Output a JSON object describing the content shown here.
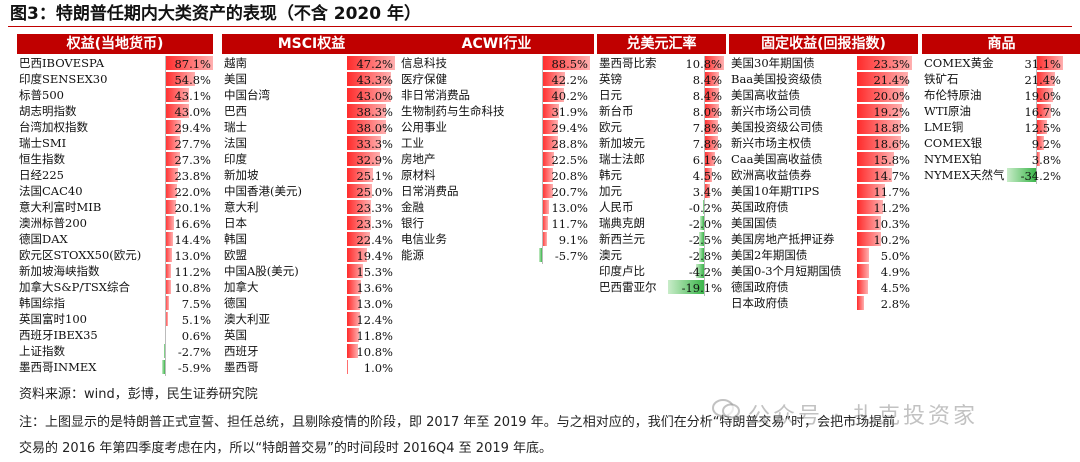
{
  "figure_title": "图3：特朗普任期内大类资产的表现（不含 2020 年）",
  "columns": [
    {
      "header": "权益(当地货币)",
      "rows": [
        {
          "name": "巴西IBOVESPA",
          "value": "87.1%",
          "num": 87.1
        },
        {
          "name": "印度SENSEX30",
          "value": "54.8%",
          "num": 54.8
        },
        {
          "name": "标普500",
          "value": "43.1%",
          "num": 43.1
        },
        {
          "name": "胡志明指数",
          "value": "43.0%",
          "num": 43.0
        },
        {
          "name": "台湾加权指数",
          "value": "29.4%",
          "num": 29.4
        },
        {
          "name": "瑞士SMI",
          "value": "27.7%",
          "num": 27.7
        },
        {
          "name": "恒生指数",
          "value": "27.3%",
          "num": 27.3
        },
        {
          "name": "日经225",
          "value": "23.8%",
          "num": 23.8
        },
        {
          "name": "法国CAC40",
          "value": "22.0%",
          "num": 22.0
        },
        {
          "name": "意大利富时MIB",
          "value": "20.1%",
          "num": 20.1
        },
        {
          "name": "澳洲标普200",
          "value": "16.6%",
          "num": 16.6
        },
        {
          "name": "德国DAX",
          "value": "14.4%",
          "num": 14.4
        },
        {
          "name": "欧元区STOXX50(欧元)",
          "value": "13.0%",
          "num": 13.0
        },
        {
          "name": "新加坡海峡指数",
          "value": "11.2%",
          "num": 11.2
        },
        {
          "name": "加拿大S&P/TSX综合",
          "value": "10.8%",
          "num": 10.8
        },
        {
          "name": "韩国综指",
          "value": "7.5%",
          "num": 7.5
        },
        {
          "name": "英国富时100",
          "value": "5.1%",
          "num": 5.1
        },
        {
          "name": "西班牙IBEX35",
          "value": "0.6%",
          "num": 0.6
        },
        {
          "name": "上证指数",
          "value": "-2.7%",
          "num": -2.7
        },
        {
          "name": "墨西哥INMEX",
          "value": "-5.9%",
          "num": -5.9
        }
      ]
    },
    {
      "header": "MSCI权益",
      "rows": [
        {
          "name": "越南",
          "value": "47.2%",
          "num": 47.2
        },
        {
          "name": "美国",
          "value": "43.3%",
          "num": 43.3
        },
        {
          "name": "中国台湾",
          "value": "43.0%",
          "num": 43.0
        },
        {
          "name": "巴西",
          "value": "38.3%",
          "num": 38.3
        },
        {
          "name": "瑞士",
          "value": "38.0%",
          "num": 38.0
        },
        {
          "name": "法国",
          "value": "33.3%",
          "num": 33.3
        },
        {
          "name": "印度",
          "value": "32.9%",
          "num": 32.9
        },
        {
          "name": "新加坡",
          "value": "25.1%",
          "num": 25.1
        },
        {
          "name": "中国香港(美元)",
          "value": "25.0%",
          "num": 25.0
        },
        {
          "name": "意大利",
          "value": "23.3%",
          "num": 23.3
        },
        {
          "name": "日本",
          "value": "23.3%",
          "num": 23.3
        },
        {
          "name": "韩国",
          "value": "22.4%",
          "num": 22.4
        },
        {
          "name": "欧盟",
          "value": "19.4%",
          "num": 19.4
        },
        {
          "name": "中国A股(美元)",
          "value": "15.3%",
          "num": 15.3
        },
        {
          "name": "加拿大",
          "value": "13.6%",
          "num": 13.6
        },
        {
          "name": "德国",
          "value": "13.0%",
          "num": 13.0
        },
        {
          "name": "澳大利亚",
          "value": "12.4%",
          "num": 12.4
        },
        {
          "name": "英国",
          "value": "11.8%",
          "num": 11.8
        },
        {
          "name": "西班牙",
          "value": "10.8%",
          "num": 10.8
        },
        {
          "name": "墨西哥",
          "value": "1.0%",
          "num": 1.0
        }
      ]
    },
    {
      "header": "ACWI行业",
      "rows": [
        {
          "name": "信息科技",
          "value": "88.5%",
          "num": 88.5
        },
        {
          "name": "医疗保健",
          "value": "42.2%",
          "num": 42.2
        },
        {
          "name": "非日常消费品",
          "value": "40.2%",
          "num": 40.2
        },
        {
          "name": "生物制药与生命科技",
          "value": "31.9%",
          "num": 31.9
        },
        {
          "name": "公用事业",
          "value": "29.4%",
          "num": 29.4
        },
        {
          "name": "工业",
          "value": "28.8%",
          "num": 28.8
        },
        {
          "name": "房地产",
          "value": "22.5%",
          "num": 22.5
        },
        {
          "name": "原材料",
          "value": "20.8%",
          "num": 20.8
        },
        {
          "name": "日常消费品",
          "value": "20.7%",
          "num": 20.7
        },
        {
          "name": "金融",
          "value": "13.0%",
          "num": 13.0
        },
        {
          "name": "银行",
          "value": "11.7%",
          "num": 11.7
        },
        {
          "name": "电信业务",
          "value": "9.1%",
          "num": 9.1
        },
        {
          "name": "能源",
          "value": "-5.7%",
          "num": -5.7
        }
      ]
    },
    {
      "header": "兑美元汇率",
      "rows": [
        {
          "name": "墨西哥比索",
          "value": "10.8%",
          "num": 10.8
        },
        {
          "name": "英镑",
          "value": "8.4%",
          "num": 8.4
        },
        {
          "name": "日元",
          "value": "8.4%",
          "num": 8.4
        },
        {
          "name": "新台币",
          "value": "8.0%",
          "num": 8.0
        },
        {
          "name": "欧元",
          "value": "7.8%",
          "num": 7.8
        },
        {
          "name": "新加坡元",
          "value": "7.8%",
          "num": 7.8
        },
        {
          "name": "瑞士法郎",
          "value": "6.1%",
          "num": 6.1
        },
        {
          "name": "韩元",
          "value": "4.5%",
          "num": 4.5
        },
        {
          "name": "加元",
          "value": "3.4%",
          "num": 3.4
        },
        {
          "name": "人民币",
          "value": "-0.2%",
          "num": -0.2
        },
        {
          "name": "瑞典克朗",
          "value": "-2.0%",
          "num": -2.0
        },
        {
          "name": "新西兰元",
          "value": "-2.5%",
          "num": -2.5
        },
        {
          "name": "澳元",
          "value": "-2.8%",
          "num": -2.8
        },
        {
          "name": "印度卢比",
          "value": "-4.2%",
          "num": -4.2
        },
        {
          "name": "巴西雷亚尔",
          "value": "-19.1%",
          "num": -19.1
        }
      ]
    },
    {
      "header": "固定收益(回报指数)",
      "rows": [
        {
          "name": "美国30年期国债",
          "value": "23.3%",
          "num": 23.3
        },
        {
          "name": "Baa美国投资级债",
          "value": "21.4%",
          "num": 21.4
        },
        {
          "name": "美国高收益债",
          "value": "20.0%",
          "num": 20.0
        },
        {
          "name": "新兴市场公司债",
          "value": "19.2%",
          "num": 19.2
        },
        {
          "name": "美国投资级公司债",
          "value": "18.8%",
          "num": 18.8
        },
        {
          "name": "新兴市场主权债",
          "value": "18.6%",
          "num": 18.6
        },
        {
          "name": "Caa美国高收益债",
          "value": "15.8%",
          "num": 15.8
        },
        {
          "name": "欧洲高收益债券",
          "value": "14.7%",
          "num": 14.7
        },
        {
          "name": "美国10年期TIPS",
          "value": "11.7%",
          "num": 11.7
        },
        {
          "name": "英国政府债",
          "value": "11.2%",
          "num": 11.2
        },
        {
          "name": "美国国债",
          "value": "10.3%",
          "num": 10.3
        },
        {
          "name": "美国房地产抵押证券",
          "value": "10.2%",
          "num": 10.2
        },
        {
          "name": "美国2年期国债",
          "value": "5.0%",
          "num": 5.0
        },
        {
          "name": "美国0-3个月短期国债",
          "value": "4.9%",
          "num": 4.9
        },
        {
          "name": "德国政府债",
          "value": "4.5%",
          "num": 4.5
        },
        {
          "name": "日本政府债",
          "value": "2.8%",
          "num": 2.8
        }
      ]
    },
    {
      "header": "商品",
      "rows": [
        {
          "name": "COMEX黄金",
          "value": "31.1%",
          "num": 31.1
        },
        {
          "name": "铁矿石",
          "value": "21.4%",
          "num": 21.4
        },
        {
          "name": "布伦特原油",
          "value": "19.0%",
          "num": 19.0
        },
        {
          "name": "WTI原油",
          "value": "16.7%",
          "num": 16.7
        },
        {
          "name": "LME铜",
          "value": "12.5%",
          "num": 12.5
        },
        {
          "name": "COMEX银",
          "value": "9.2%",
          "num": 9.2
        },
        {
          "name": "NYMEX铂",
          "value": "3.8%",
          "num": 3.8
        },
        {
          "name": "NYMEX天然气",
          "value": "-34.2%",
          "num": -34.2
        }
      ]
    }
  ],
  "source_text": "资料来源：wind，彭博，民生证券研究院",
  "note_line1": "注：上图显示的是特朗普正式宣誓、担任总统，且剔除疫情的阶段，即 2017 年至 2019 年。与之相对应的，我们在分析“特朗普交易”时，会把市场提前",
  "note_line2": "交易的 2016 年第四季度考虑在内，所以“特朗普交易”的时间段时 2016Q4 至 2019 年底。",
  "watermark": "公众号 · 扎克投资家",
  "colors": {
    "header_bg": "#c00000",
    "pos_bar": "#ff2b2b",
    "neg_bar": "#3bb54a"
  }
}
